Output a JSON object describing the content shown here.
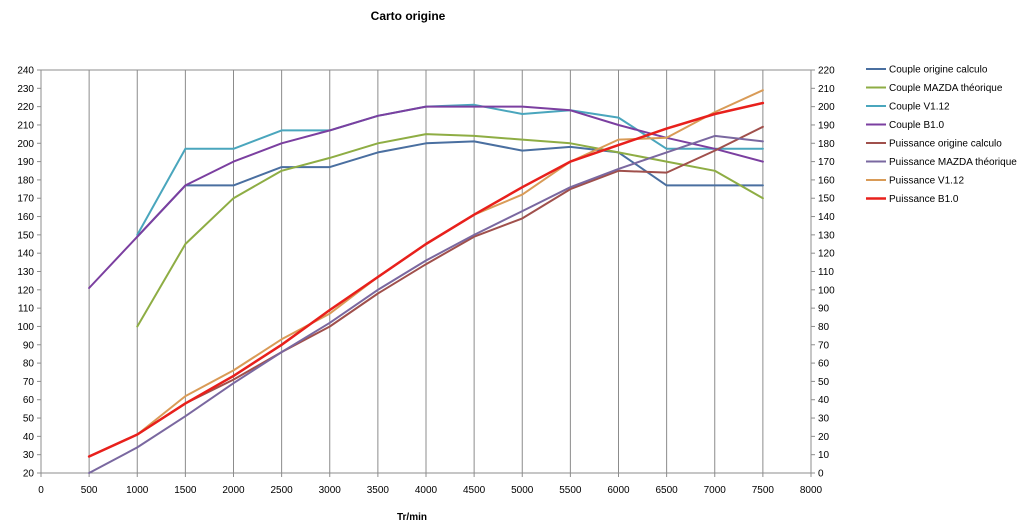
{
  "chart_data": {
    "type": "line",
    "title": "Carto origine",
    "xlabel": "Tr/min",
    "ylabel": "",
    "y2label": "",
    "xlim": [
      0,
      8000
    ],
    "ylim": [
      20,
      240
    ],
    "y2lim": [
      0,
      220
    ],
    "grid": "vertical",
    "legend": "right",
    "x_ticks": [
      0,
      500,
      1000,
      1500,
      2000,
      2500,
      3000,
      3500,
      4000,
      4500,
      5000,
      5500,
      6000,
      6500,
      7000,
      7500,
      8000
    ],
    "y_ticks": [
      20,
      30,
      40,
      50,
      60,
      70,
      80,
      90,
      100,
      110,
      120,
      130,
      140,
      150,
      160,
      170,
      180,
      190,
      200,
      210,
      220,
      230,
      240
    ],
    "y2_ticks": [
      0,
      10,
      20,
      30,
      40,
      50,
      60,
      70,
      80,
      90,
      100,
      110,
      120,
      130,
      140,
      150,
      160,
      170,
      180,
      190,
      200,
      210,
      220
    ],
    "series": [
      {
        "name": "Couple origine calculo",
        "color": "#4a6fa0",
        "width": 2,
        "x": [
          1000,
          1500,
          2000,
          2500,
          3000,
          3500,
          4000,
          4500,
          5000,
          5500,
          6000,
          6500,
          7000,
          7500
        ],
        "y": [
          149,
          177,
          177,
          187,
          187,
          195,
          200,
          201,
          196,
          198,
          195,
          177,
          177,
          177
        ]
      },
      {
        "name": "Couple MAZDA théorique",
        "color": "#8ead44",
        "width": 2,
        "x": [
          1000,
          1500,
          2000,
          2500,
          3000,
          3500,
          4000,
          4500,
          5000,
          5500,
          6000,
          6500,
          7000,
          7500
        ],
        "y": [
          100,
          145,
          170,
          185,
          192,
          200,
          205,
          204,
          202,
          200,
          195,
          190,
          185,
          170
        ]
      },
      {
        "name": "Couple V1.12",
        "color": "#4aa6bd",
        "width": 2,
        "x": [
          1000,
          1500,
          2000,
          2500,
          3000,
          3500,
          4000,
          4500,
          5000,
          5500,
          6000,
          6500,
          7000,
          7500
        ],
        "y": [
          150,
          197,
          197,
          207,
          207,
          215,
          220,
          221,
          216,
          218,
          214,
          197,
          197,
          197
        ]
      },
      {
        "name": "Couple B1.0",
        "color": "#7b3fa0",
        "width": 2,
        "x": [
          500,
          1000,
          1500,
          2000,
          2500,
          3000,
          3500,
          4000,
          4500,
          5000,
          5500,
          6000,
          6500,
          7000,
          7500
        ],
        "y": [
          121,
          149,
          177,
          190,
          200,
          207,
          215,
          220,
          220,
          220,
          218,
          210,
          203,
          197,
          190
        ]
      },
      {
        "name": "Puissance origine calculo",
        "color": "#a0504c",
        "width": 2,
        "axis": "y2",
        "x": [
          500,
          1000,
          1500,
          2000,
          2500,
          3000,
          3500,
          4000,
          4500,
          5000,
          5500,
          6000,
          6500,
          7000,
          7500
        ],
        "y": [
          9,
          21,
          38,
          51,
          66,
          80,
          98,
          114,
          129,
          139,
          155,
          165,
          164,
          176,
          189
        ]
      },
      {
        "name": "Puissance MAZDA théorique",
        "color": "#7a68a0",
        "width": 2,
        "axis": "y2",
        "x": [
          500,
          1000,
          1500,
          2000,
          2500,
          3000,
          3500,
          4000,
          4500,
          5000,
          5500,
          6000,
          6500,
          7000,
          7500
        ],
        "y": [
          0,
          14,
          31,
          49,
          66,
          82,
          100,
          116,
          130,
          143,
          156,
          166,
          175,
          184,
          181
        ]
      },
      {
        "name": "Puissance V1.12",
        "color": "#d99b57",
        "width": 2,
        "axis": "y2",
        "x": [
          500,
          1000,
          1500,
          2000,
          2500,
          3000,
          3500,
          4000,
          4500,
          5000,
          5500,
          6000,
          6500,
          7000,
          7500
        ],
        "y": [
          9,
          21,
          42,
          56,
          73,
          87,
          107,
          125,
          141,
          152,
          170,
          182,
          183,
          197,
          209
        ]
      },
      {
        "name": "Puissance B1.0",
        "color": "#e8201c",
        "width": 2.5,
        "axis": "y2",
        "x": [
          500,
          1000,
          1500,
          2000,
          2500,
          3000,
          3500,
          4000,
          4500,
          5000,
          5500,
          6000,
          6500,
          7000,
          7500
        ],
        "y": [
          9,
          21,
          38,
          53,
          70,
          89,
          107,
          125,
          141,
          156,
          170,
          179,
          188,
          196,
          202
        ]
      }
    ]
  }
}
